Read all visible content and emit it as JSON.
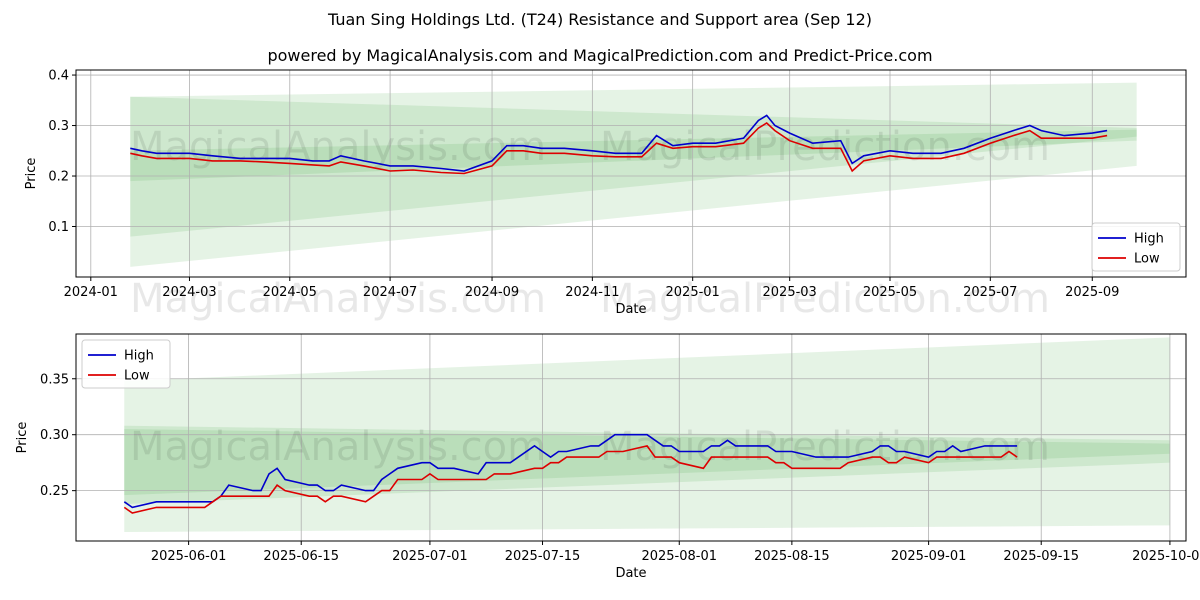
{
  "title": "Tuan Sing Holdings Ltd. (T24) Resistance and Support area (Sep 12)",
  "subtitle": "powered by MagicalAnalysis.com and MagicalPrediction.com and Predict-Price.com",
  "watermarks": [
    "MagicalAnalysis.com",
    "MagicalPrediction.com"
  ],
  "colors": {
    "high": "#0000cc",
    "low": "#dd0000",
    "band": "#2ca02c",
    "grid": "#b0b0b0"
  },
  "chart_data": [
    {
      "type": "line",
      "xlabel": "Date",
      "ylabel": "Price",
      "x_range": [
        "2023-12-23",
        "2025-10-28"
      ],
      "ylim": [
        0.0,
        0.41
      ],
      "x_ticks": [
        "2024-01",
        "2024-03",
        "2024-05",
        "2024-07",
        "2024-09",
        "2024-11",
        "2025-01",
        "2025-03",
        "2025-05",
        "2025-07",
        "2025-09"
      ],
      "y_ticks": [
        0.1,
        0.2,
        0.3,
        0.4
      ],
      "grid": true,
      "legend": {
        "position": "bottom-right",
        "entries": [
          "High",
          "Low"
        ]
      },
      "bands": [
        {
          "x": [
            "2024-01-25",
            "2025-09-28"
          ],
          "upper": [
            0.357,
            0.385
          ],
          "lower": [
            0.02,
            0.22
          ],
          "opacity": 0.12
        },
        {
          "x": [
            "2024-01-25",
            "2025-09-28"
          ],
          "upper": [
            0.357,
            0.295
          ],
          "lower": [
            0.08,
            0.278
          ],
          "opacity": 0.12
        },
        {
          "x": [
            "2024-01-25",
            "2025-09-28"
          ],
          "upper": [
            0.25,
            0.292
          ],
          "lower": [
            0.19,
            0.27
          ],
          "opacity": 0.12
        }
      ],
      "series": [
        {
          "name": "High",
          "x": [
            "2024-01-25",
            "2024-02-01",
            "2024-02-10",
            "2024-02-20",
            "2024-03-01",
            "2024-03-15",
            "2024-04-01",
            "2024-04-15",
            "2024-05-01",
            "2024-05-15",
            "2024-05-25",
            "2024-06-01",
            "2024-06-15",
            "2024-07-01",
            "2024-07-15",
            "2024-08-01",
            "2024-08-15",
            "2024-09-01",
            "2024-09-10",
            "2024-09-20",
            "2024-10-01",
            "2024-10-15",
            "2024-11-01",
            "2024-11-15",
            "2024-12-01",
            "2024-12-10",
            "2024-12-20",
            "2025-01-01",
            "2025-01-15",
            "2025-02-01",
            "2025-02-10",
            "2025-02-15",
            "2025-02-20",
            "2025-03-01",
            "2025-03-15",
            "2025-04-01",
            "2025-04-08",
            "2025-04-15",
            "2025-05-01",
            "2025-05-15",
            "2025-06-01",
            "2025-06-15",
            "2025-07-01",
            "2025-07-15",
            "2025-07-25",
            "2025-08-01",
            "2025-08-15",
            "2025-09-01",
            "2025-09-10"
          ],
          "values": [
            0.255,
            0.25,
            0.245,
            0.245,
            0.245,
            0.24,
            0.235,
            0.235,
            0.235,
            0.23,
            0.23,
            0.24,
            0.23,
            0.22,
            0.22,
            0.215,
            0.21,
            0.23,
            0.26,
            0.26,
            0.255,
            0.255,
            0.25,
            0.245,
            0.245,
            0.28,
            0.26,
            0.265,
            0.265,
            0.275,
            0.31,
            0.32,
            0.3,
            0.285,
            0.265,
            0.27,
            0.225,
            0.24,
            0.25,
            0.245,
            0.245,
            0.255,
            0.275,
            0.29,
            0.3,
            0.29,
            0.28,
            0.285,
            0.29
          ]
        },
        {
          "name": "Low",
          "x": [
            "2024-01-25",
            "2024-02-01",
            "2024-02-10",
            "2024-02-20",
            "2024-03-01",
            "2024-03-15",
            "2024-04-01",
            "2024-04-15",
            "2024-05-01",
            "2024-05-15",
            "2024-05-25",
            "2024-06-01",
            "2024-06-15",
            "2024-07-01",
            "2024-07-15",
            "2024-08-01",
            "2024-08-15",
            "2024-09-01",
            "2024-09-10",
            "2024-09-20",
            "2024-10-01",
            "2024-10-15",
            "2024-11-01",
            "2024-11-15",
            "2024-12-01",
            "2024-12-10",
            "2024-12-20",
            "2025-01-01",
            "2025-01-15",
            "2025-02-01",
            "2025-02-10",
            "2025-02-15",
            "2025-02-20",
            "2025-03-01",
            "2025-03-15",
            "2025-04-01",
            "2025-04-08",
            "2025-04-15",
            "2025-05-01",
            "2025-05-15",
            "2025-06-01",
            "2025-06-15",
            "2025-07-01",
            "2025-07-15",
            "2025-07-25",
            "2025-08-01",
            "2025-08-15",
            "2025-09-01",
            "2025-09-10"
          ],
          "values": [
            0.245,
            0.24,
            0.235,
            0.235,
            0.235,
            0.23,
            0.23,
            0.228,
            0.225,
            0.222,
            0.22,
            0.228,
            0.22,
            0.21,
            0.212,
            0.207,
            0.205,
            0.22,
            0.25,
            0.25,
            0.245,
            0.245,
            0.24,
            0.238,
            0.238,
            0.265,
            0.255,
            0.258,
            0.258,
            0.265,
            0.295,
            0.305,
            0.29,
            0.27,
            0.255,
            0.255,
            0.21,
            0.23,
            0.24,
            0.235,
            0.235,
            0.245,
            0.265,
            0.28,
            0.29,
            0.275,
            0.275,
            0.275,
            0.28
          ]
        }
      ]
    },
    {
      "type": "line",
      "xlabel": "Date",
      "ylabel": "Price",
      "x_range": [
        "2025-05-18",
        "2025-10-03"
      ],
      "ylim": [
        0.205,
        0.39
      ],
      "x_ticks": [
        "2025-06-01",
        "2025-06-15",
        "2025-07-01",
        "2025-07-15",
        "2025-08-01",
        "2025-08-15",
        "2025-09-01",
        "2025-09-15",
        "2025-10-01"
      ],
      "y_ticks": [
        0.25,
        0.3,
        0.35
      ],
      "grid": true,
      "legend": {
        "position": "top-left",
        "entries": [
          "High",
          "Low"
        ]
      },
      "bands": [
        {
          "x": [
            "2025-05-24",
            "2025-10-01"
          ],
          "upper": [
            0.348,
            0.387
          ],
          "lower": [
            0.213,
            0.219
          ],
          "opacity": 0.12
        },
        {
          "x": [
            "2025-05-24",
            "2025-10-01"
          ],
          "upper": [
            0.308,
            0.295
          ],
          "lower": [
            0.238,
            0.275
          ],
          "opacity": 0.12
        },
        {
          "x": [
            "2025-05-24",
            "2025-10-01"
          ],
          "upper": [
            0.305,
            0.292
          ],
          "lower": [
            0.246,
            0.283
          ],
          "opacity": 0.12
        }
      ],
      "series": [
        {
          "name": "High",
          "x": [
            "2025-05-24",
            "2025-05-25",
            "2025-05-28",
            "2025-05-29",
            "2025-06-01",
            "2025-06-02",
            "2025-06-03",
            "2025-06-04",
            "2025-06-05",
            "2025-06-06",
            "2025-06-09",
            "2025-06-10",
            "2025-06-11",
            "2025-06-12",
            "2025-06-13",
            "2025-06-16",
            "2025-06-17",
            "2025-06-18",
            "2025-06-19",
            "2025-06-20",
            "2025-06-23",
            "2025-06-24",
            "2025-06-25",
            "2025-06-26",
            "2025-06-27",
            "2025-06-30",
            "2025-07-01",
            "2025-07-02",
            "2025-07-03",
            "2025-07-04",
            "2025-07-07",
            "2025-07-08",
            "2025-07-09",
            "2025-07-10",
            "2025-07-11",
            "2025-07-14",
            "2025-07-15",
            "2025-07-16",
            "2025-07-17",
            "2025-07-18",
            "2025-07-21",
            "2025-07-22",
            "2025-07-23",
            "2025-07-24",
            "2025-07-25",
            "2025-07-28",
            "2025-07-29",
            "2025-07-30",
            "2025-07-31",
            "2025-08-01",
            "2025-08-04",
            "2025-08-05",
            "2025-08-06",
            "2025-08-07",
            "2025-08-08",
            "2025-08-11",
            "2025-08-12",
            "2025-08-13",
            "2025-08-14",
            "2025-08-15",
            "2025-08-18",
            "2025-08-19",
            "2025-08-20",
            "2025-08-21",
            "2025-08-22",
            "2025-08-25",
            "2025-08-26",
            "2025-08-27",
            "2025-08-28",
            "2025-08-29",
            "2025-09-01",
            "2025-09-02",
            "2025-09-03",
            "2025-09-04",
            "2025-09-05",
            "2025-09-08",
            "2025-09-09",
            "2025-09-10",
            "2025-09-11",
            "2025-09-12"
          ],
          "values": [
            0.24,
            0.235,
            0.24,
            0.24,
            0.24,
            0.24,
            0.24,
            0.24,
            0.245,
            0.255,
            0.25,
            0.25,
            0.265,
            0.27,
            0.26,
            0.255,
            0.255,
            0.25,
            0.25,
            0.255,
            0.25,
            0.25,
            0.26,
            0.265,
            0.27,
            0.275,
            0.275,
            0.27,
            0.27,
            0.27,
            0.265,
            0.275,
            0.275,
            0.275,
            0.275,
            0.29,
            0.285,
            0.28,
            0.285,
            0.285,
            0.29,
            0.29,
            0.295,
            0.3,
            0.3,
            0.3,
            0.295,
            0.29,
            0.29,
            0.285,
            0.285,
            0.29,
            0.29,
            0.295,
            0.29,
            0.29,
            0.29,
            0.285,
            0.285,
            0.285,
            0.28,
            0.28,
            0.28,
            0.28,
            0.28,
            0.285,
            0.29,
            0.29,
            0.285,
            0.285,
            0.28,
            0.285,
            0.285,
            0.29,
            0.285,
            0.29,
            0.29,
            0.29,
            0.29,
            0.29
          ]
        },
        {
          "name": "Low",
          "x": [
            "2025-05-24",
            "2025-05-25",
            "2025-05-28",
            "2025-05-29",
            "2025-06-01",
            "2025-06-02",
            "2025-06-03",
            "2025-06-04",
            "2025-06-05",
            "2025-06-06",
            "2025-06-09",
            "2025-06-10",
            "2025-06-11",
            "2025-06-12",
            "2025-06-13",
            "2025-06-16",
            "2025-06-17",
            "2025-06-18",
            "2025-06-19",
            "2025-06-20",
            "2025-06-23",
            "2025-06-24",
            "2025-06-25",
            "2025-06-26",
            "2025-06-27",
            "2025-06-30",
            "2025-07-01",
            "2025-07-02",
            "2025-07-03",
            "2025-07-04",
            "2025-07-07",
            "2025-07-08",
            "2025-07-09",
            "2025-07-10",
            "2025-07-11",
            "2025-07-14",
            "2025-07-15",
            "2025-07-16",
            "2025-07-17",
            "2025-07-18",
            "2025-07-21",
            "2025-07-22",
            "2025-07-23",
            "2025-07-24",
            "2025-07-25",
            "2025-07-28",
            "2025-07-29",
            "2025-07-30",
            "2025-07-31",
            "2025-08-01",
            "2025-08-04",
            "2025-08-05",
            "2025-08-06",
            "2025-08-07",
            "2025-08-08",
            "2025-08-11",
            "2025-08-12",
            "2025-08-13",
            "2025-08-14",
            "2025-08-15",
            "2025-08-18",
            "2025-08-19",
            "2025-08-20",
            "2025-08-21",
            "2025-08-22",
            "2025-08-25",
            "2025-08-26",
            "2025-08-27",
            "2025-08-28",
            "2025-08-29",
            "2025-09-01",
            "2025-09-02",
            "2025-09-03",
            "2025-09-04",
            "2025-09-05",
            "2025-09-08",
            "2025-09-09",
            "2025-09-10",
            "2025-09-11",
            "2025-09-12"
          ],
          "values": [
            0.235,
            0.23,
            0.235,
            0.235,
            0.235,
            0.235,
            0.235,
            0.24,
            0.245,
            0.245,
            0.245,
            0.245,
            0.245,
            0.255,
            0.25,
            0.245,
            0.245,
            0.24,
            0.245,
            0.245,
            0.24,
            0.245,
            0.25,
            0.25,
            0.26,
            0.26,
            0.265,
            0.26,
            0.26,
            0.26,
            0.26,
            0.26,
            0.265,
            0.265,
            0.265,
            0.27,
            0.27,
            0.275,
            0.275,
            0.28,
            0.28,
            0.28,
            0.285,
            0.285,
            0.285,
            0.29,
            0.28,
            0.28,
            0.28,
            0.275,
            0.27,
            0.28,
            0.28,
            0.28,
            0.28,
            0.28,
            0.28,
            0.275,
            0.275,
            0.27,
            0.27,
            0.27,
            0.27,
            0.27,
            0.275,
            0.28,
            0.28,
            0.275,
            0.275,
            0.28,
            0.275,
            0.28,
            0.28,
            0.28,
            0.28,
            0.28,
            0.28,
            0.28,
            0.285,
            0.28
          ]
        }
      ]
    }
  ]
}
